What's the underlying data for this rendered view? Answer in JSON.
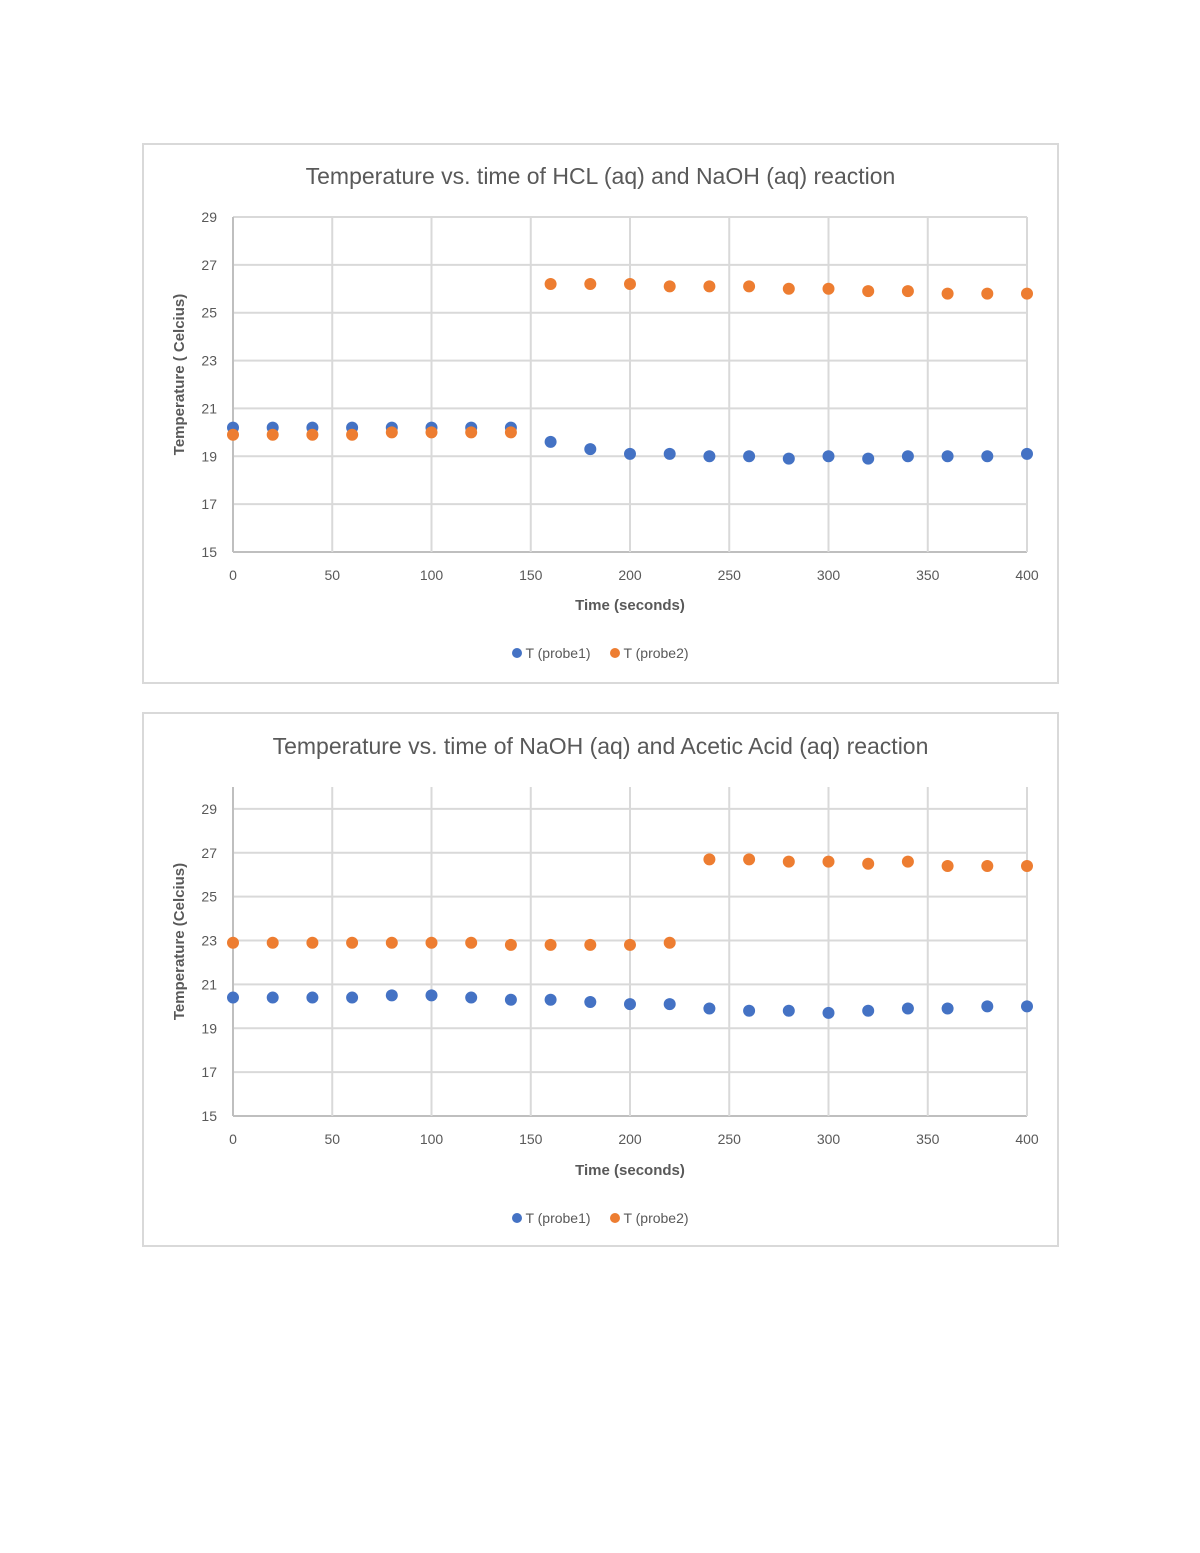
{
  "chart_data": [
    {
      "type": "scatter",
      "title": "Temperature vs. time of HCL (aq) and NaOH (aq) reaction",
      "xlabel": "Time (seconds)",
      "ylabel": "Temperature ( Celcius)",
      "xlim": [
        0,
        400
      ],
      "ylim": [
        15,
        29
      ],
      "xticks": [
        0,
        50,
        100,
        150,
        200,
        250,
        300,
        350,
        400
      ],
      "yticks": [
        15,
        17,
        19,
        21,
        23,
        25,
        27,
        29
      ],
      "grid": true,
      "legend": "bottom",
      "x": [
        0,
        20,
        40,
        60,
        80,
        100,
        120,
        140,
        160,
        180,
        200,
        220,
        240,
        260,
        280,
        300,
        320,
        340,
        360,
        380,
        400
      ],
      "series": [
        {
          "name": "T (probe1)",
          "color": "#4472c4",
          "values": [
            20.2,
            20.2,
            20.2,
            20.2,
            20.2,
            20.2,
            20.2,
            20.2,
            19.6,
            19.3,
            19.1,
            19.1,
            19.0,
            19.0,
            18.9,
            19.0,
            18.9,
            19.0,
            19.0,
            19.0,
            19.1
          ]
        },
        {
          "name": "T (probe2)",
          "color": "#ed7d31",
          "values": [
            19.9,
            19.9,
            19.9,
            19.9,
            20.0,
            20.0,
            20.0,
            20.0,
            26.2,
            26.2,
            26.2,
            26.1,
            26.1,
            26.1,
            26.0,
            26.0,
            25.9,
            25.9,
            25.8,
            25.8,
            25.8
          ]
        }
      ]
    },
    {
      "type": "scatter",
      "title": "Temperature vs. time of NaOH (aq) and Acetic Acid (aq) reaction",
      "xlabel": "Time (seconds)",
      "ylabel": "Temperature (Celcius)",
      "xlim": [
        0,
        400
      ],
      "ylim": [
        15,
        30
      ],
      "xticks": [
        0,
        50,
        100,
        150,
        200,
        250,
        300,
        350,
        400
      ],
      "yticks": [
        15,
        17,
        19,
        21,
        23,
        25,
        27,
        29
      ],
      "grid": true,
      "legend": "bottom",
      "x": [
        0,
        20,
        40,
        60,
        80,
        100,
        120,
        140,
        160,
        180,
        200,
        220,
        240,
        260,
        280,
        300,
        320,
        340,
        360,
        380,
        400
      ],
      "series": [
        {
          "name": "T (probe1)",
          "color": "#4472c4",
          "values": [
            20.4,
            20.4,
            20.4,
            20.4,
            20.5,
            20.5,
            20.4,
            20.3,
            20.3,
            20.2,
            20.1,
            20.1,
            19.9,
            19.8,
            19.8,
            19.7,
            19.8,
            19.9,
            19.9,
            20.0,
            20.0
          ]
        },
        {
          "name": "T (probe2)",
          "color": "#ed7d31",
          "values": [
            22.9,
            22.9,
            22.9,
            22.9,
            22.9,
            22.9,
            22.9,
            22.8,
            22.8,
            22.8,
            22.8,
            22.9,
            26.7,
            26.7,
            26.6,
            26.6,
            26.5,
            26.6,
            26.4,
            26.4,
            26.4
          ]
        }
      ]
    }
  ]
}
